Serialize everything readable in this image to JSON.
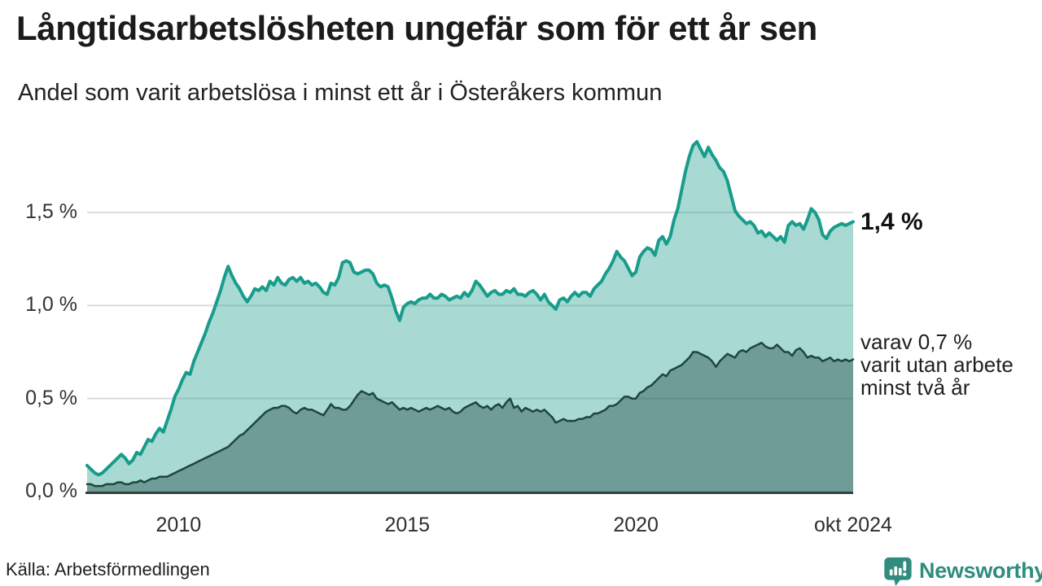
{
  "header": {
    "title": "Långtidsarbetslösheten ungefär som för ett år sen",
    "subtitle": "Andel som varit arbetslösa i minst ett år i Österåkers kommun"
  },
  "annotations": {
    "end_value": "1,4 %",
    "secondary_line1": "varav 0,7 %",
    "secondary_line2": "varit utan arbete",
    "secondary_line3": "minst två år"
  },
  "footer": {
    "source": "Källa: Arbetsförmedlingen",
    "brand_name": "Newsworthy",
    "brand_icon": "bar-chart-speech-bubble-icon"
  },
  "colors": {
    "line_main": "#189c8b",
    "fill_main": "rgba(26,156,140,0.38)",
    "line_secondary": "#1e463f",
    "fill_secondary": "rgba(30,70,64,0.41)",
    "gridline": "#dcdcdc",
    "baseline": "#33413e",
    "brand_teal": "#2f8c7e",
    "text_dark": "#1b1b1b"
  },
  "chart_data": {
    "type": "area",
    "title": "Långtidsarbetslösheten ungefär som för ett år sen",
    "subtitle": "Andel som varit arbetslösa i minst ett år i Österåkers kommun",
    "unit": "%",
    "interval": "monthly",
    "x_start_year": 2008,
    "x_start_month": 1,
    "x_end": 2024.75,
    "x_end_label": "okt 2024",
    "ylim": [
      0,
      1.95
    ],
    "grid": true,
    "yticks": [
      {
        "value": 0.0,
        "label": "0,0 %"
      },
      {
        "value": 0.5,
        "label": "0,5 %"
      },
      {
        "value": 1.0,
        "label": "1,0 %"
      },
      {
        "value": 1.5,
        "label": "1,5 %"
      }
    ],
    "xticks": [
      {
        "x": 2010,
        "label": "2010"
      },
      {
        "x": 2015,
        "label": "2015"
      },
      {
        "x": 2020,
        "label": "2020"
      },
      {
        "x": 2024.75,
        "label": "okt 2024"
      }
    ],
    "series": [
      {
        "name": "Andel arbetslösa minst ett år",
        "end_value_label": "1,4 %",
        "values": [
          0.14,
          0.12,
          0.1,
          0.09,
          0.1,
          0.12,
          0.14,
          0.16,
          0.18,
          0.2,
          0.18,
          0.15,
          0.17,
          0.21,
          0.2,
          0.24,
          0.28,
          0.27,
          0.31,
          0.34,
          0.32,
          0.38,
          0.44,
          0.51,
          0.55,
          0.6,
          0.64,
          0.63,
          0.7,
          0.75,
          0.8,
          0.85,
          0.91,
          0.96,
          1.02,
          1.08,
          1.15,
          1.21,
          1.16,
          1.12,
          1.09,
          1.05,
          1.02,
          1.05,
          1.09,
          1.08,
          1.1,
          1.08,
          1.13,
          1.11,
          1.15,
          1.12,
          1.11,
          1.14,
          1.15,
          1.13,
          1.15,
          1.12,
          1.13,
          1.11,
          1.12,
          1.1,
          1.07,
          1.06,
          1.12,
          1.11,
          1.15,
          1.23,
          1.24,
          1.23,
          1.18,
          1.17,
          1.18,
          1.19,
          1.19,
          1.17,
          1.12,
          1.1,
          1.11,
          1.1,
          1.04,
          0.97,
          0.92,
          0.99,
          1.01,
          1.02,
          1.01,
          1.03,
          1.04,
          1.04,
          1.06,
          1.04,
          1.04,
          1.06,
          1.05,
          1.03,
          1.04,
          1.05,
          1.04,
          1.07,
          1.05,
          1.08,
          1.13,
          1.11,
          1.08,
          1.05,
          1.07,
          1.08,
          1.06,
          1.06,
          1.08,
          1.07,
          1.09,
          1.06,
          1.06,
          1.05,
          1.07,
          1.08,
          1.06,
          1.03,
          1.06,
          1.02,
          1.0,
          0.98,
          1.03,
          1.04,
          1.02,
          1.05,
          1.07,
          1.05,
          1.07,
          1.07,
          1.05,
          1.09,
          1.11,
          1.13,
          1.17,
          1.2,
          1.24,
          1.29,
          1.26,
          1.24,
          1.2,
          1.16,
          1.18,
          1.26,
          1.29,
          1.31,
          1.3,
          1.27,
          1.35,
          1.37,
          1.33,
          1.37,
          1.46,
          1.52,
          1.62,
          1.72,
          1.8,
          1.86,
          1.88,
          1.84,
          1.8,
          1.85,
          1.81,
          1.78,
          1.74,
          1.72,
          1.67,
          1.59,
          1.51,
          1.48,
          1.46,
          1.44,
          1.45,
          1.43,
          1.39,
          1.4,
          1.37,
          1.39,
          1.37,
          1.35,
          1.37,
          1.34,
          1.43,
          1.45,
          1.43,
          1.44,
          1.41,
          1.46,
          1.52,
          1.5,
          1.46,
          1.38,
          1.36,
          1.4,
          1.42,
          1.43,
          1.44,
          1.43,
          1.44,
          1.45
        ]
      },
      {
        "name": "Varav utan arbete minst två år",
        "end_value_label": "0,7 %",
        "values": [
          0.04,
          0.04,
          0.03,
          0.03,
          0.03,
          0.04,
          0.04,
          0.04,
          0.05,
          0.05,
          0.04,
          0.04,
          0.05,
          0.05,
          0.06,
          0.05,
          0.06,
          0.07,
          0.07,
          0.08,
          0.08,
          0.08,
          0.09,
          0.1,
          0.11,
          0.12,
          0.13,
          0.14,
          0.15,
          0.16,
          0.17,
          0.18,
          0.19,
          0.2,
          0.21,
          0.22,
          0.23,
          0.24,
          0.26,
          0.28,
          0.3,
          0.31,
          0.33,
          0.35,
          0.37,
          0.39,
          0.41,
          0.43,
          0.44,
          0.45,
          0.45,
          0.46,
          0.46,
          0.45,
          0.43,
          0.42,
          0.44,
          0.45,
          0.44,
          0.44,
          0.43,
          0.42,
          0.41,
          0.44,
          0.47,
          0.45,
          0.45,
          0.44,
          0.44,
          0.46,
          0.49,
          0.52,
          0.54,
          0.53,
          0.52,
          0.53,
          0.5,
          0.49,
          0.48,
          0.47,
          0.48,
          0.46,
          0.44,
          0.45,
          0.44,
          0.45,
          0.44,
          0.43,
          0.44,
          0.45,
          0.44,
          0.45,
          0.46,
          0.45,
          0.44,
          0.45,
          0.43,
          0.42,
          0.43,
          0.45,
          0.46,
          0.47,
          0.48,
          0.46,
          0.45,
          0.46,
          0.44,
          0.46,
          0.47,
          0.45,
          0.48,
          0.5,
          0.45,
          0.46,
          0.43,
          0.45,
          0.44,
          0.43,
          0.44,
          0.43,
          0.44,
          0.42,
          0.4,
          0.37,
          0.38,
          0.39,
          0.38,
          0.38,
          0.38,
          0.39,
          0.39,
          0.4,
          0.4,
          0.42,
          0.42,
          0.43,
          0.44,
          0.46,
          0.46,
          0.47,
          0.49,
          0.51,
          0.51,
          0.5,
          0.5,
          0.53,
          0.54,
          0.56,
          0.57,
          0.59,
          0.61,
          0.63,
          0.62,
          0.65,
          0.66,
          0.67,
          0.68,
          0.7,
          0.72,
          0.75,
          0.75,
          0.74,
          0.73,
          0.72,
          0.7,
          0.67,
          0.7,
          0.72,
          0.74,
          0.73,
          0.72,
          0.75,
          0.76,
          0.75,
          0.77,
          0.78,
          0.79,
          0.8,
          0.78,
          0.77,
          0.77,
          0.79,
          0.77,
          0.75,
          0.75,
          0.73,
          0.76,
          0.77,
          0.75,
          0.72,
          0.73,
          0.72,
          0.72,
          0.7,
          0.71,
          0.72,
          0.7,
          0.71,
          0.7,
          0.71,
          0.7,
          0.71
        ]
      }
    ]
  }
}
